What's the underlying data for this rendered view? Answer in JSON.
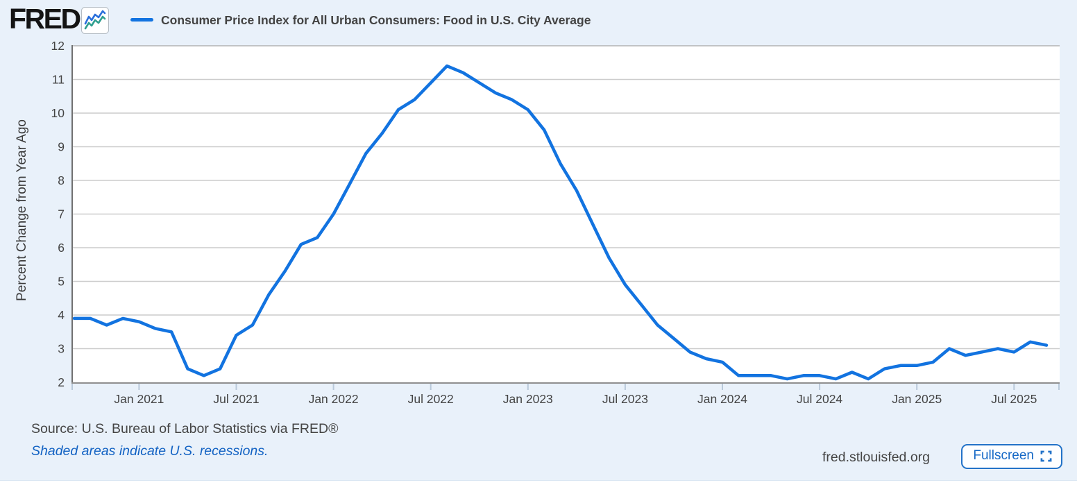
{
  "header": {
    "logo_text": "FRED",
    "series_title": "Consumer Price Index for All Urban Consumers: Food in U.S. City Average"
  },
  "footer": {
    "source_text": "Source: U.S. Bureau of Labor Statistics via FRED®",
    "recession_note": "Shaded areas indicate U.S. recessions.",
    "site_url": "fred.stlouisfed.org",
    "fullscreen_label": "Fullscreen"
  },
  "colors": {
    "page_background": "#e9f1fa",
    "plot_background": "#ffffff",
    "gridline": "#cccccc",
    "axis_line": "#8f8f8f",
    "tick_mark": "#b9c9da",
    "tick_label": "#444444",
    "series_line": "#1273e0",
    "legend_title": "#434343",
    "link_blue": "#1262c3",
    "fullscreen_blue": "#1568c6"
  },
  "chart_data": {
    "type": "line",
    "title": "Consumer Price Index for All Urban Consumers: Food in U.S. City Average",
    "xlabel": "",
    "ylabel": "Percent Change from Year Ago",
    "ylim": [
      2,
      12
    ],
    "grid": true,
    "legend_position": "top",
    "y_ticks": [
      2,
      3,
      4,
      5,
      6,
      7,
      8,
      9,
      10,
      11,
      12
    ],
    "x_ticks": [
      {
        "label": "Jan 2021",
        "i": 4
      },
      {
        "label": "Jul 2021",
        "i": 10
      },
      {
        "label": "Jan 2022",
        "i": 16
      },
      {
        "label": "Jul 2022",
        "i": 22
      },
      {
        "label": "Jan 2023",
        "i": 28
      },
      {
        "label": "Jul 2023",
        "i": 34
      },
      {
        "label": "Jan 2024",
        "i": 40
      },
      {
        "label": "Jul 2024",
        "i": 46
      },
      {
        "label": "Jan 2025",
        "i": 52
      },
      {
        "label": "Jul 2025",
        "i": 58
      }
    ],
    "dates": [
      "2020-09",
      "2020-10",
      "2020-11",
      "2020-12",
      "2021-01",
      "2021-02",
      "2021-03",
      "2021-04",
      "2021-05",
      "2021-06",
      "2021-07",
      "2021-08",
      "2021-09",
      "2021-10",
      "2021-11",
      "2021-12",
      "2022-01",
      "2022-02",
      "2022-03",
      "2022-04",
      "2022-05",
      "2022-06",
      "2022-07",
      "2022-08",
      "2022-09",
      "2022-10",
      "2022-11",
      "2022-12",
      "2023-01",
      "2023-02",
      "2023-03",
      "2023-04",
      "2023-05",
      "2023-06",
      "2023-07",
      "2023-08",
      "2023-09",
      "2023-10",
      "2023-11",
      "2023-12",
      "2024-01",
      "2024-02",
      "2024-03",
      "2024-04",
      "2024-05",
      "2024-06",
      "2024-07",
      "2024-08",
      "2024-09",
      "2024-10",
      "2024-11",
      "2024-12",
      "2025-01",
      "2025-02",
      "2025-03",
      "2025-04",
      "2025-05",
      "2025-06",
      "2025-07",
      "2025-08",
      "2025-09"
    ],
    "series": [
      {
        "name": "Consumer Price Index for All Urban Consumers: Food in U.S. City Average",
        "color": "#1273e0",
        "values": [
          3.9,
          3.9,
          3.7,
          3.9,
          3.8,
          3.6,
          3.5,
          2.4,
          2.2,
          2.4,
          3.4,
          3.7,
          4.6,
          5.3,
          6.1,
          6.3,
          7.0,
          7.9,
          8.8,
          9.4,
          10.1,
          10.4,
          10.9,
          11.4,
          11.2,
          10.9,
          10.6,
          10.4,
          10.1,
          9.5,
          8.5,
          7.7,
          6.7,
          5.7,
          4.9,
          4.3,
          3.7,
          3.3,
          2.9,
          2.7,
          2.6,
          2.2,
          2.2,
          2.2,
          2.1,
          2.2,
          2.2,
          2.1,
          2.3,
          2.1,
          2.4,
          2.5,
          2.5,
          2.6,
          3.0,
          2.8,
          2.9,
          3.0,
          2.9,
          3.2,
          3.1
        ]
      }
    ]
  }
}
